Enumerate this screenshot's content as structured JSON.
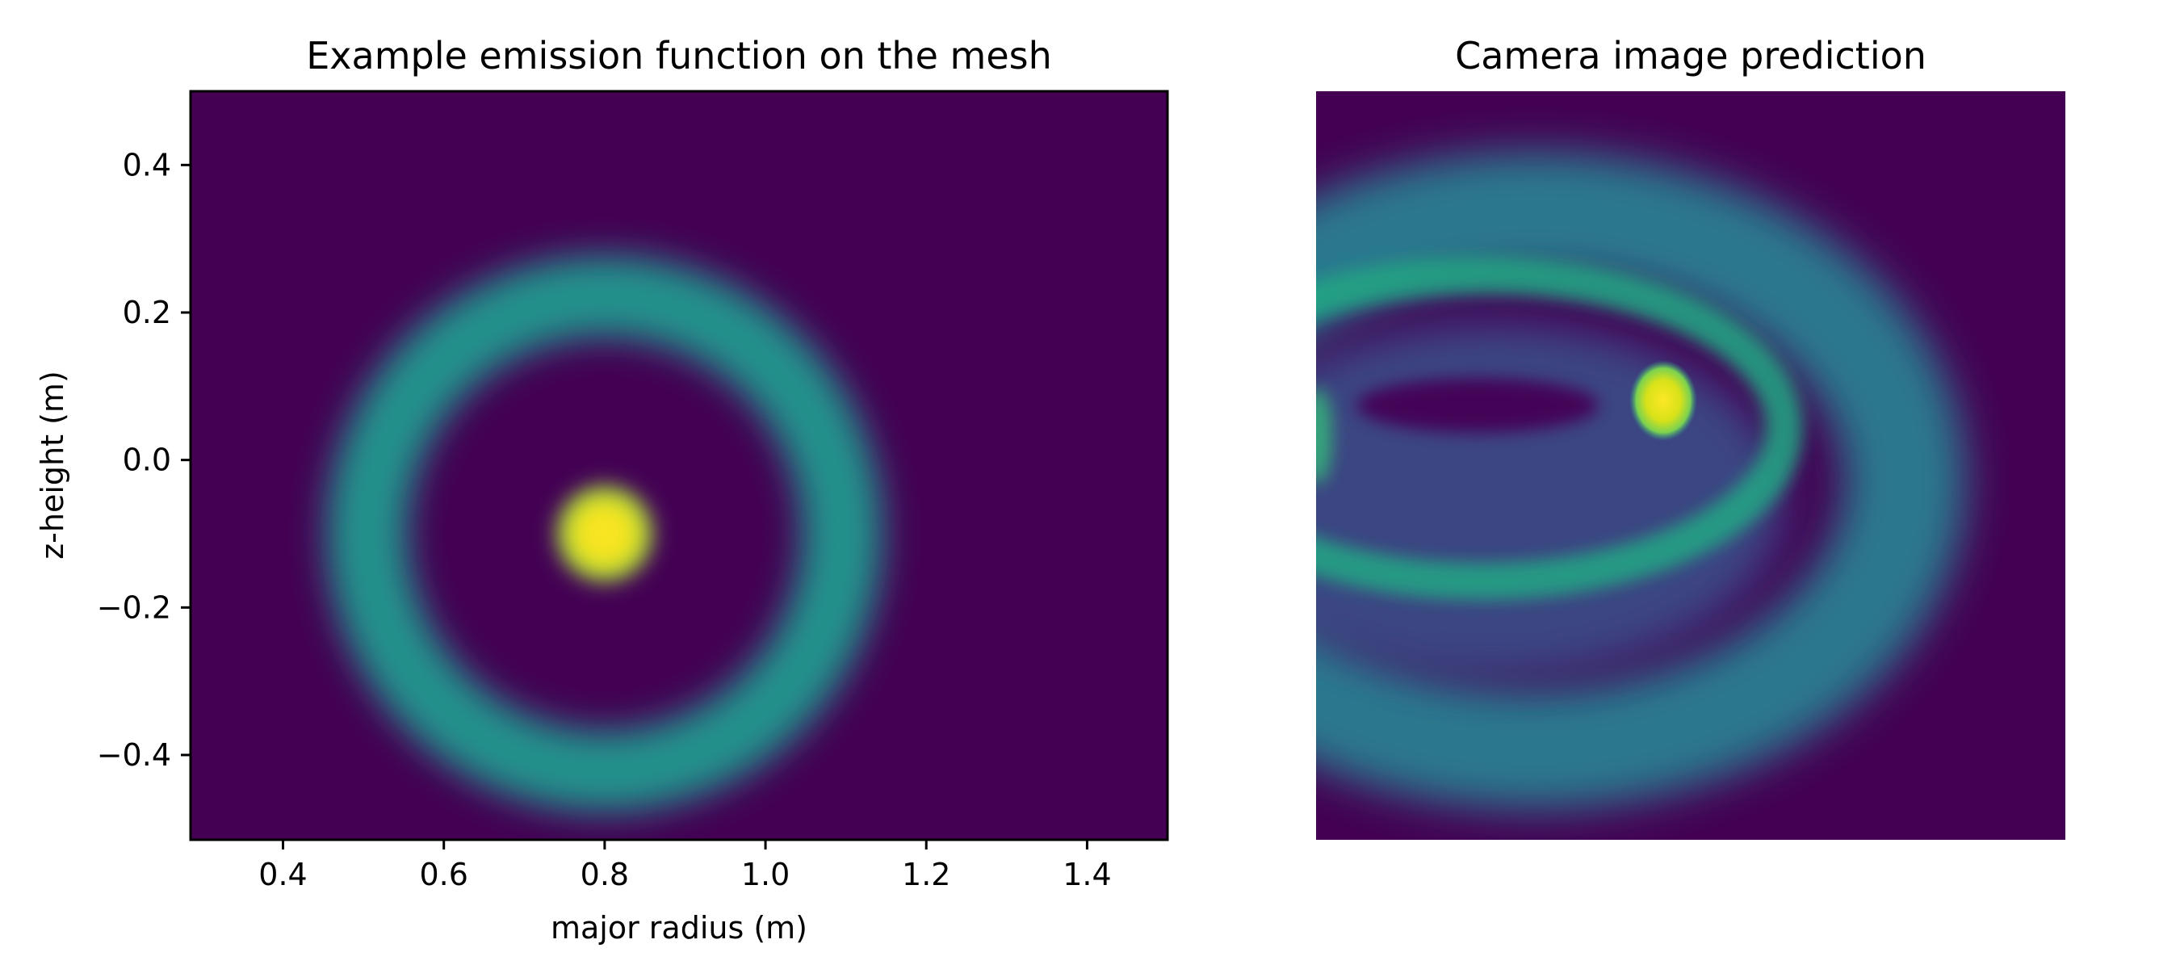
{
  "chart_data": [
    {
      "type": "heatmap",
      "title": "Example emission function on the mesh",
      "xlabel": "major radius (m)",
      "ylabel": "z-height (m)",
      "xlim": [
        0.285,
        1.5
      ],
      "ylim": [
        -0.515,
        0.5
      ],
      "xticks": [
        0.4,
        0.6,
        0.8,
        1.0,
        1.2,
        1.4
      ],
      "xtick_labels": [
        "0.4",
        "0.6",
        "0.8",
        "1.0",
        "1.2",
        "1.4"
      ],
      "yticks": [
        0.4,
        0.2,
        0.0,
        -0.2,
        -0.4
      ],
      "ytick_labels": [
        "0.4",
        "0.2",
        "0.0",
        "−0.2",
        "−0.4"
      ],
      "colormap": "viridis",
      "features": [
        {
          "name": "ring",
          "center_r": 0.8,
          "center_z": -0.1,
          "radius": 0.3,
          "width": 0.09,
          "intensity": 0.5
        },
        {
          "name": "spot",
          "center_r": 0.8,
          "center_z": -0.1,
          "radius": 0.065,
          "intensity": 1.0
        }
      ]
    },
    {
      "type": "heatmap",
      "title": "Camera image prediction",
      "xlabel": "",
      "ylabel": "",
      "axis": "off",
      "colormap": "viridis",
      "features": [
        {
          "name": "outer-toroidal-band",
          "intensity": 0.45
        },
        {
          "name": "inner-ellipse-band",
          "intensity": 0.55
        },
        {
          "name": "bright-spot",
          "intensity": 1.0
        },
        {
          "name": "dark-core",
          "intensity": 0.02
        }
      ]
    }
  ],
  "colors": {
    "viridis_low": "#440154",
    "viridis_mid": "#21918c",
    "viridis_high": "#fde725"
  }
}
